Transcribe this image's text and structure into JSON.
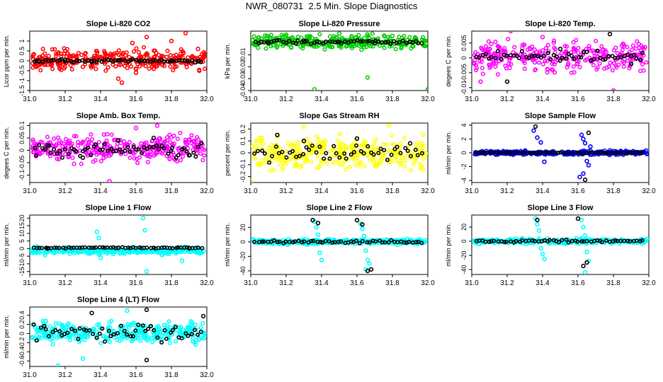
{
  "figure": {
    "title": "NWR_080731  2.5 Min. Slope Diagnostics",
    "background": "#ffffff",
    "marker_shape": "open-circle",
    "overlay_series_color": "#000000"
  },
  "chart_data": [
    {
      "type": "scatter",
      "title": "Slope Li-820 CO2",
      "ylabel": "Licor ppm per min.",
      "xlabel": "",
      "xlim": [
        31.0,
        32.0
      ],
      "xticks": [
        31.0,
        31.2,
        31.4,
        31.6,
        31.8,
        32.0
      ],
      "ylim": [
        -1.5,
        1.5
      ],
      "yticks": [
        -1.5,
        -1.0,
        -0.5,
        0.0,
        0.5,
        1.0
      ],
      "color": "#ff0000",
      "bulk": {
        "n": 320,
        "center": 0.05,
        "spread": 0.35,
        "outlier_max": 1.45,
        "outlier_min": -1.4
      },
      "overlay": {
        "n": 60,
        "center": 0.0,
        "spread": 0.08
      },
      "series": [
        {
          "color": "#ff0000",
          "x": [
            31.02,
            31.1,
            31.2,
            31.3,
            31.4,
            31.5,
            31.52,
            31.58,
            31.6,
            31.66,
            31.7,
            31.8,
            31.88,
            31.95
          ],
          "y": [
            0.3,
            -0.2,
            0.5,
            -0.3,
            0.2,
            -0.9,
            -1.1,
            0.9,
            -0.6,
            1.2,
            -0.4,
            1.0,
            1.4,
            0.6
          ]
        },
        {
          "color": "#000000",
          "x": [
            31.05,
            31.2,
            31.35,
            31.5,
            31.65,
            31.8,
            31.95
          ],
          "y": [
            0.0,
            0.05,
            -0.05,
            0.02,
            0.0,
            0.03,
            -0.02
          ]
        }
      ]
    },
    {
      "type": "scatter",
      "title": "Slope Li-820 Pressure",
      "ylabel": "kPa per min.",
      "xlabel": "",
      "xlim": [
        31.0,
        32.0
      ],
      "xticks": [
        31.0,
        31.2,
        31.4,
        31.6,
        31.8,
        32.0
      ],
      "ylim": [
        -0.04,
        0.01
      ],
      "yticks": [
        -0.04,
        -0.03,
        -0.02,
        -0.01
      ],
      "color": "#00cc00",
      "bulk": {
        "n": 300,
        "center": 0.001,
        "spread": 0.004,
        "outlier_max": 0.009,
        "outlier_min": -0.012
      },
      "overlay": {
        "n": 55,
        "center": 0.001,
        "spread": 0.0015
      },
      "series": [
        {
          "color": "#00cc00",
          "x": [
            31.36,
            31.66,
            32.0,
            31.2,
            31.5,
            31.8
          ],
          "y": [
            -0.039,
            -0.029,
            -0.039,
            0.007,
            0.008,
            0.006
          ]
        },
        {
          "color": "#000000",
          "x": [
            31.1,
            31.3,
            31.5,
            31.7,
            31.9
          ],
          "y": [
            0.0,
            0.002,
            0.001,
            0.0,
            0.001
          ]
        }
      ]
    },
    {
      "type": "scatter",
      "title": "Slope Li-820 Temp.",
      "ylabel": "degees C per min.",
      "xlabel": "",
      "xlim": [
        31.0,
        32.0
      ],
      "xticks": [
        31.0,
        31.2,
        31.4,
        31.6,
        31.8,
        32.0
      ],
      "ylim": [
        -0.011,
        0.009
      ],
      "yticks": [
        -0.01,
        -0.005,
        0.0,
        0.005
      ],
      "color": "#ff00ff",
      "bulk": {
        "n": 300,
        "center": 0.0005,
        "spread": 0.0035,
        "outlier_max": 0.0085,
        "outlier_min": -0.011
      },
      "overlay": {
        "n": 55,
        "center": 0.0005,
        "spread": 0.002
      },
      "series": [
        {
          "color": "#ff00ff",
          "x": [
            31.22,
            31.8,
            31.05,
            31.4
          ],
          "y": [
            0.009,
            -0.011,
            -0.008,
            0.007
          ]
        },
        {
          "color": "#000000",
          "x": [
            31.2,
            31.5,
            31.78,
            31.9
          ],
          "y": [
            -0.008,
            0.003,
            0.008,
            -0.002
          ]
        }
      ]
    },
    {
      "type": "scatter",
      "title": "Slope Amb. Box Temp.",
      "ylabel": "degees C per min.",
      "xlabel": "",
      "xlim": [
        31.0,
        32.0
      ],
      "xticks": [
        31.0,
        31.2,
        31.4,
        31.6,
        31.8,
        32.0
      ],
      "ylim": [
        -0.13,
        0.11
      ],
      "yticks": [
        -0.1,
        -0.05,
        0.0,
        0.05,
        0.1
      ],
      "color": "#ff00ff",
      "bulk": {
        "n": 320,
        "center": 0.01,
        "spread": 0.035,
        "outlier_max": 0.1,
        "outlier_min": -0.1
      },
      "overlay": {
        "n": 60,
        "center": 0.0,
        "spread": 0.03
      },
      "series": [
        {
          "color": "#ff00ff",
          "x": [
            31.45,
            31.72,
            31.6
          ],
          "y": [
            -0.125,
            0.1,
            0.09
          ]
        },
        {
          "color": "#000000",
          "x": [
            31.1,
            31.3,
            31.5,
            31.7,
            31.9
          ],
          "y": [
            0.02,
            -0.03,
            0.04,
            0.05,
            -0.02
          ]
        }
      ]
    },
    {
      "type": "scatter",
      "title": "Slope Gas Stream RH",
      "ylabel": "percent per min.",
      "xlabel": "",
      "xlim": [
        31.0,
        32.0
      ],
      "xticks": [
        31.0,
        31.2,
        31.4,
        31.6,
        31.8,
        32.0
      ],
      "ylim": [
        -0.25,
        0.25
      ],
      "yticks": [
        -0.2,
        -0.1,
        0.0,
        0.1,
        0.2
      ],
      "color": "#ffff00",
      "bulk": {
        "n": 330,
        "center": 0.0,
        "spread": 0.09,
        "outlier_max": 0.24,
        "outlier_min": -0.24
      },
      "overlay": {
        "n": 50,
        "center": 0.0,
        "spread": 0.07
      },
      "series": [
        {
          "color": "#ffff00",
          "x": [
            31.0,
            31.78,
            31.3
          ],
          "y": [
            -0.24,
            0.23,
            0.22
          ]
        },
        {
          "color": "#000000",
          "x": [
            31.15,
            31.3,
            31.6,
            31.9
          ],
          "y": [
            0.15,
            0.1,
            0.12,
            0.08
          ]
        }
      ]
    },
    {
      "type": "scatter",
      "title": "Slope Sample Flow",
      "ylabel": "ml/min per min.",
      "xlabel": "",
      "xlim": [
        31.0,
        32.0
      ],
      "xticks": [
        31.0,
        31.2,
        31.4,
        31.6,
        31.8,
        32.0
      ],
      "ylim": [
        -4.3,
        4.3
      ],
      "yticks": [
        -4,
        -2,
        0,
        2,
        4
      ],
      "color": "#0000ff",
      "bulk": {
        "n": 330,
        "center": 0.0,
        "spread": 0.2,
        "outlier_max": 0.7,
        "outlier_min": -0.7
      },
      "overlay": {
        "n": 60,
        "center": 0.0,
        "spread": 0.1
      },
      "series": [
        {
          "color": "#0000ff",
          "x": [
            31.35,
            31.37,
            31.39,
            31.41,
            31.62,
            31.63,
            31.64,
            31.65,
            31.66,
            31.67,
            31.61,
            31.63
          ],
          "y": [
            3.2,
            2.2,
            1.5,
            -1.3,
            2.6,
            2.0,
            1.4,
            -1.2,
            -1.8,
            0.9,
            -3.5,
            -3.0
          ]
        },
        {
          "color": "#000000",
          "x": [
            31.36,
            31.64,
            31.66
          ],
          "y": [
            3.8,
            -3.9,
            2.9
          ]
        }
      ]
    },
    {
      "type": "scatter",
      "title": "Slope Line 1 Flow",
      "ylabel": "ml/min per min.",
      "xlabel": "",
      "xlim": [
        31.0,
        32.0
      ],
      "xticks": [
        31.0,
        31.2,
        31.4,
        31.6,
        31.8,
        32.0
      ],
      "ylim": [
        -17,
        22
      ],
      "yticks": [
        -15,
        -10,
        -5,
        0,
        5,
        10,
        15,
        20
      ],
      "color": "#00ffff",
      "bulk": {
        "n": 330,
        "center": -1.5,
        "spread": 1.5,
        "outlier_max": 4,
        "outlier_min": -6
      },
      "overlay": {
        "n": 60,
        "center": 0.5,
        "spread": 0.4
      },
      "series": [
        {
          "color": "#00ffff",
          "x": [
            31.38,
            31.39,
            31.4,
            31.64,
            31.65,
            31.66,
            31.86
          ],
          "y": [
            11,
            7,
            -6,
            20,
            12,
            -15,
            -8
          ]
        },
        {
          "color": "#000000",
          "x": [
            31.1,
            31.5,
            31.9
          ],
          "y": [
            0.0,
            0.5,
            0.2
          ]
        }
      ]
    },
    {
      "type": "scatter",
      "title": "Slope Line 2 Flow",
      "ylabel": "ml/min per min.",
      "xlabel": "",
      "xlim": [
        31.0,
        32.0
      ],
      "xticks": [
        31.0,
        31.2,
        31.4,
        31.6,
        31.8,
        32.0
      ],
      "ylim": [
        -45,
        37
      ],
      "yticks": [
        -40,
        -20,
        0,
        20
      ],
      "color": "#00ffff",
      "bulk": {
        "n": 300,
        "center": 0.0,
        "spread": 2.5,
        "outlier_max": 8,
        "outlier_min": -8
      },
      "overlay": {
        "n": 55,
        "center": 0.0,
        "spread": 2.0
      },
      "series": [
        {
          "color": "#00ffff",
          "x": [
            31.36,
            31.37,
            31.38,
            31.39,
            31.4,
            31.62,
            31.63,
            31.64,
            31.65,
            31.66,
            31.67,
            31.65
          ],
          "y": [
            28,
            20,
            10,
            -15,
            -25,
            25,
            18,
            8,
            -12,
            -25,
            -30,
            -38
          ]
        },
        {
          "color": "#000000",
          "x": [
            31.35,
            31.38,
            31.6,
            31.63,
            31.66,
            31.68
          ],
          "y": [
            30,
            26,
            30,
            24,
            -40,
            -38
          ]
        }
      ]
    },
    {
      "type": "scatter",
      "title": "Slope Line 3 Flow",
      "ylabel": "ml/min per min.",
      "xlabel": "",
      "xlim": [
        31.0,
        32.0
      ],
      "xticks": [
        31.0,
        31.2,
        31.4,
        31.6,
        31.8,
        32.0
      ],
      "ylim": [
        -47,
        37
      ],
      "yticks": [
        -40,
        -20,
        0,
        20
      ],
      "color": "#00ffff",
      "bulk": {
        "n": 300,
        "center": 0.0,
        "spread": 2.5,
        "outlier_max": 8,
        "outlier_min": -10
      },
      "overlay": {
        "n": 55,
        "center": 0.0,
        "spread": 2.0
      },
      "series": [
        {
          "color": "#00ffff",
          "x": [
            31.36,
            31.37,
            31.38,
            31.39,
            31.4,
            31.41,
            31.62,
            31.63,
            31.64,
            31.65,
            31.66,
            31.64
          ],
          "y": [
            32,
            24,
            15,
            -10,
            -18,
            -25,
            30,
            20,
            8,
            -15,
            -28,
            -44
          ]
        },
        {
          "color": "#000000",
          "x": [
            31.37,
            31.6,
            31.63,
            31.65
          ],
          "y": [
            30,
            32,
            -35,
            -30
          ]
        }
      ]
    },
    {
      "type": "scatter",
      "title": "Slope Line 4 (LT) Flow",
      "ylabel": "ml/min per min.",
      "xlabel": "",
      "xlim": [
        31.0,
        32.0
      ],
      "xticks": [
        31.0,
        31.2,
        31.4,
        31.6,
        31.8,
        32.0
      ],
      "ylim": [
        -0.72,
        0.58
      ],
      "yticks": [
        -0.6,
        -0.4,
        -0.2,
        0.0,
        0.2,
        0.4
      ],
      "color": "#00ffff",
      "bulk": {
        "n": 320,
        "center": 0.02,
        "spread": 0.16,
        "outlier_max": 0.45,
        "outlier_min": -0.5
      },
      "overlay": {
        "n": 55,
        "center": 0.02,
        "spread": 0.2
      },
      "series": [
        {
          "color": "#00ffff",
          "x": [
            31.16,
            31.3,
            31.55
          ],
          "y": [
            -0.7,
            -0.55,
            0.5
          ]
        },
        {
          "color": "#000000",
          "x": [
            31.35,
            31.66,
            31.66,
            31.98
          ],
          "y": [
            0.45,
            0.52,
            -0.58,
            0.38
          ]
        }
      ]
    }
  ]
}
